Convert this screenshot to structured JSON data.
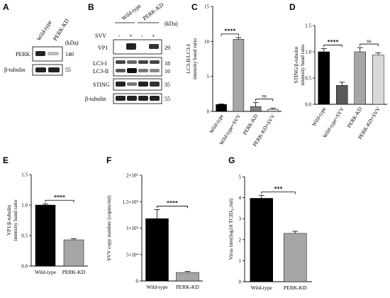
{
  "panel_letters": [
    "A",
    "B",
    "C",
    "D",
    "E",
    "F",
    "G"
  ],
  "panel_a": {
    "lane_labels": [
      "Wild-type",
      "PERK-KD"
    ],
    "kda_header": "(kDa)",
    "rows": [
      {
        "name": "PERK",
        "kda": "140"
      },
      {
        "name": "β-tubulin",
        "kda": "55"
      }
    ]
  },
  "panel_b": {
    "group_labels": [
      "Wild-type",
      "PERK-KD"
    ],
    "svv_label": "SVV",
    "svv_signs": [
      "-",
      "+",
      "-",
      "+"
    ],
    "kda_header": "(kDa)",
    "rows": [
      {
        "name": "VP1",
        "kda": "29"
      },
      {
        "name": "LC3-I",
        "kda": "18"
      },
      {
        "name": "LC3-II",
        "kda": "16"
      },
      {
        "name": "STING",
        "kda": "35"
      },
      {
        "name": "β-tubulin",
        "kda": "55"
      }
    ]
  },
  "chart_data": [
    {
      "id": "C",
      "type": "bar",
      "categories": [
        "Wild-type",
        "Wild-type+SVV",
        "PERK-KD",
        "PERK-KD+SVV"
      ],
      "values": [
        1.0,
        10.3,
        0.7,
        0.3
      ],
      "errors": [
        0.05,
        0.25,
        0.55,
        0.15
      ],
      "colors": [
        "#000000",
        "#a6a6a6",
        "#7f7f7f",
        "#d9d9d9"
      ],
      "ylabel_lines": [
        "LC3-II/LC3-I",
        "intensity band ratio"
      ],
      "ylim": [
        0,
        15
      ],
      "yticks": [
        "0",
        "5",
        "10",
        "15"
      ],
      "significance": [
        {
          "from": 0,
          "to": 1,
          "label": "****"
        },
        {
          "from": 2,
          "to": 3,
          "label": "ns"
        }
      ]
    },
    {
      "id": "D",
      "type": "bar",
      "categories": [
        "Wild-type",
        "Wild-type+SVV",
        "PERK-KD",
        "PERK-KD+SVV"
      ],
      "values": [
        1.0,
        0.36,
        1.0,
        0.94
      ],
      "errors": [
        0.06,
        0.06,
        0.08,
        0.04
      ],
      "colors": [
        "#000000",
        "#595959",
        "#a6a6a6",
        "#d9d9d9"
      ],
      "ylabel_lines": [
        "STING/β-tubulin",
        "intensity band ratio"
      ],
      "ylim": [
        0,
        1.5
      ],
      "yticks": [
        "0.0",
        "0.5",
        "1.0",
        "1.5"
      ],
      "significance": [
        {
          "from": 0,
          "to": 1,
          "label": "****"
        },
        {
          "from": 2,
          "to": 3,
          "label": "ns"
        }
      ]
    },
    {
      "id": "E",
      "type": "bar",
      "categories": [
        "Wild-type",
        "PERK-KD"
      ],
      "values": [
        1.0,
        0.43
      ],
      "errors": [
        0.02,
        0.02
      ],
      "colors": [
        "#000000",
        "#a6a6a6"
      ],
      "ylabel_lines": [
        "VP1/β-tubulin",
        "intensity band ratio"
      ],
      "ylim": [
        0,
        1.5
      ],
      "yticks": [
        "0.0",
        "0.5",
        "1.0",
        "1.5"
      ],
      "significance": [
        {
          "from": 0,
          "to": 1,
          "label": "****"
        }
      ]
    },
    {
      "id": "F",
      "type": "bar",
      "categories": [
        "Wild-type",
        "PERK-KD"
      ],
      "values": [
        118000,
        16000
      ],
      "errors": [
        17000,
        2000
      ],
      "colors": [
        "#000000",
        "#a6a6a6"
      ],
      "ylabel_lines": [
        "SVV copy number (copies/ml)"
      ],
      "ylim": [
        0,
        200000
      ],
      "yticks": [
        "0",
        "5×10⁴",
        "1×10⁵",
        "1.5×10⁵",
        "2×10⁵"
      ],
      "significance": [
        {
          "from": 0,
          "to": 1,
          "label": "****"
        }
      ]
    },
    {
      "id": "G",
      "type": "bar",
      "categories": [
        "Wild-type",
        "PERK-KD"
      ],
      "values": [
        3.97,
        2.3
      ],
      "errors": [
        0.13,
        0.1
      ],
      "colors": [
        "#000000",
        "#a6a6a6"
      ],
      "ylabel_lines": [
        "Virus titer(log10 TCID₅₀/ml)"
      ],
      "ylim": [
        0,
        5
      ],
      "yticks": [
        "0",
        "1",
        "2",
        "3",
        "4",
        "5"
      ],
      "significance": [
        {
          "from": 0,
          "to": 1,
          "label": "***"
        }
      ]
    }
  ]
}
